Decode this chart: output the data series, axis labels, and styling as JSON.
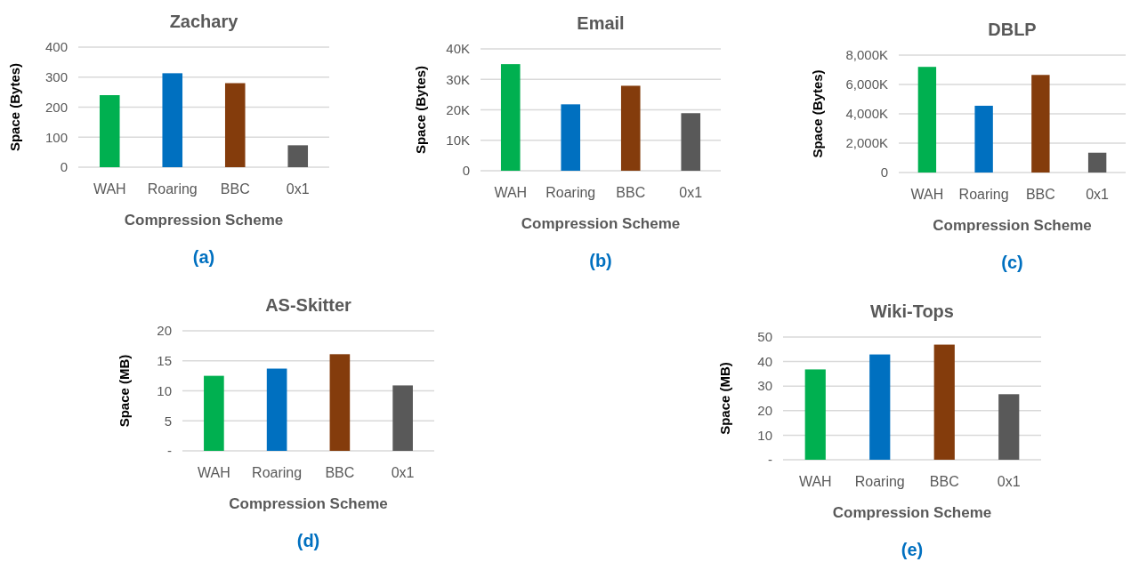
{
  "chart_data": [
    {
      "type": "bar",
      "title": "Zachary",
      "xlabel": "Compression Scheme",
      "ylabel": "Space (Bytes)",
      "categories": [
        "WAH",
        "Roaring",
        "BBC",
        "0x1"
      ],
      "values": [
        240,
        313,
        280,
        73
      ],
      "colors": [
        "#00b050",
        "#0070c0",
        "#843c0c",
        "#595959"
      ],
      "ylim": [
        0,
        400
      ],
      "yticks": [
        0,
        100,
        200,
        300,
        400
      ],
      "grid": "y",
      "annotations": [
        "(a)"
      ]
    },
    {
      "type": "bar",
      "title": "Email",
      "xlabel": "Compression Scheme",
      "ylabel": "Space (Bytes)",
      "categories": [
        "WAH",
        "Roaring",
        "BBC",
        "0x1"
      ],
      "values": [
        35000,
        21800,
        27900,
        18900
      ],
      "colors": [
        "#00b050",
        "#0070c0",
        "#843c0c",
        "#595959"
      ],
      "ylim": [
        0,
        40000
      ],
      "yticks": [
        0,
        {
          "value": 10000,
          "label": "10K"
        },
        {
          "value": 20000,
          "label": "20K"
        },
        {
          "value": 30000,
          "label": "30K"
        },
        {
          "value": 40000,
          "label": "40K"
        }
      ],
      "grid": "y",
      "annotations": [
        "(b)"
      ]
    },
    {
      "type": "bar",
      "title": "DBLP",
      "xlabel": "Compression Scheme",
      "ylabel": "Space (Bytes)",
      "categories": [
        "WAH",
        "Roaring",
        "BBC",
        "0x1"
      ],
      "values": [
        7200000,
        4550000,
        6650000,
        1350000
      ],
      "colors": [
        "#00b050",
        "#0070c0",
        "#843c0c",
        "#595959"
      ],
      "ylim": [
        0,
        8000000
      ],
      "yticks": [
        0,
        {
          "value": 2000000,
          "label": "2,000K"
        },
        {
          "value": 4000000,
          "label": "4,000K"
        },
        {
          "value": 6000000,
          "label": "6,000K"
        },
        {
          "value": 8000000,
          "label": "8,000K"
        }
      ],
      "grid": "y",
      "annotations": [
        "(c)"
      ]
    },
    {
      "type": "bar",
      "title": "AS-Skitter",
      "xlabel": "Compression Scheme",
      "ylabel": "Space (MB)",
      "categories": [
        "WAH",
        "Roaring",
        "BBC",
        "0x1"
      ],
      "values": [
        12.5,
        13.7,
        16.1,
        10.9
      ],
      "colors": [
        "#00b050",
        "#0070c0",
        "#843c0c",
        "#595959"
      ],
      "ylim": [
        0,
        20
      ],
      "yticks": [
        {
          "value": 0,
          "label": "-"
        },
        5,
        10,
        15,
        20
      ],
      "grid": "y",
      "annotations": [
        "(d)"
      ]
    },
    {
      "type": "bar",
      "title": "Wiki-Tops",
      "xlabel": "Compression Scheme",
      "ylabel": "Space (MB)",
      "categories": [
        "WAH",
        "Roaring",
        "BBC",
        "0x1"
      ],
      "values": [
        36.8,
        42.9,
        46.9,
        26.7
      ],
      "colors": [
        "#00b050",
        "#0070c0",
        "#843c0c",
        "#595959"
      ],
      "ylim": [
        0,
        50
      ],
      "yticks": [
        {
          "value": 0,
          "label": "-"
        },
        10,
        20,
        30,
        40,
        50
      ],
      "grid": "y",
      "annotations": [
        "(e)"
      ]
    }
  ]
}
